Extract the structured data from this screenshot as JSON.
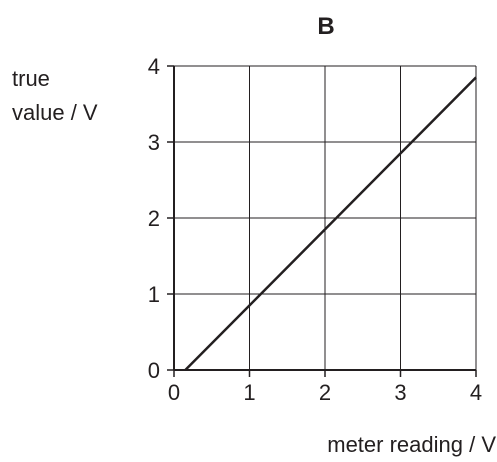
{
  "chart_data": {
    "type": "line",
    "title": "B",
    "xlabel": "meter reading / V",
    "ylabel_lines": [
      "true",
      "value / V"
    ],
    "xlim": [
      0,
      4
    ],
    "ylim": [
      0,
      4
    ],
    "x_ticks": [
      0,
      1,
      2,
      3,
      4
    ],
    "y_ticks": [
      0,
      1,
      2,
      3,
      4
    ],
    "x_tick_labels": [
      "0",
      "1",
      "2",
      "3",
      "4"
    ],
    "y_tick_labels": [
      "0",
      "1",
      "2",
      "3",
      "4"
    ],
    "grid": true,
    "series": [
      {
        "x": [
          0.15,
          4.0
        ],
        "y": [
          0.0,
          3.85
        ]
      }
    ],
    "colors": {
      "line": "#231f20",
      "grid": "#231f20",
      "text": "#231f20"
    }
  }
}
